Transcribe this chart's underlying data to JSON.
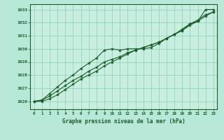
{
  "xlabel": "Graphe pression niveau de la mer (hPa)",
  "bg_color": "#b8e8d8",
  "plot_bg_color": "#c8eee0",
  "grid_color": "#88ccb0",
  "line_color": "#1a5c2a",
  "xlabel_bg": "#2a6e3a",
  "xlabel_fg": "#c8eee0",
  "xlim": [
    -0.5,
    23.5
  ],
  "ylim": [
    1025.4,
    1033.4
  ],
  "xticks": [
    0,
    1,
    2,
    3,
    4,
    5,
    6,
    7,
    8,
    9,
    10,
    11,
    12,
    13,
    14,
    15,
    16,
    17,
    18,
    19,
    20,
    21,
    22,
    23
  ],
  "yticks": [
    1026,
    1027,
    1028,
    1029,
    1030,
    1031,
    1032,
    1033
  ],
  "series": [
    [
      1026.0,
      1026.1,
      1026.6,
      1027.1,
      1027.6,
      1028.0,
      1028.5,
      1028.9,
      1029.3,
      1029.9,
      1030.0,
      1029.9,
      1030.0,
      1030.0,
      1030.0,
      1030.1,
      1030.4,
      1030.8,
      1031.1,
      1031.5,
      1031.9,
      1032.1,
      1033.0,
      1033.0
    ],
    [
      1026.0,
      1026.1,
      1026.4,
      1026.8,
      1027.2,
      1027.6,
      1027.9,
      1028.3,
      1028.6,
      1029.0,
      1029.2,
      1029.4,
      1029.7,
      1029.9,
      1030.1,
      1030.3,
      1030.5,
      1030.8,
      1031.1,
      1031.4,
      1031.9,
      1032.2,
      1032.6,
      1032.8
    ],
    [
      1026.0,
      1026.0,
      1026.2,
      1026.5,
      1026.9,
      1027.3,
      1027.7,
      1028.0,
      1028.3,
      1028.7,
      1029.0,
      1029.3,
      1029.6,
      1029.9,
      1030.1,
      1030.3,
      1030.5,
      1030.8,
      1031.1,
      1031.4,
      1031.8,
      1032.1,
      1032.5,
      1032.8
    ]
  ]
}
